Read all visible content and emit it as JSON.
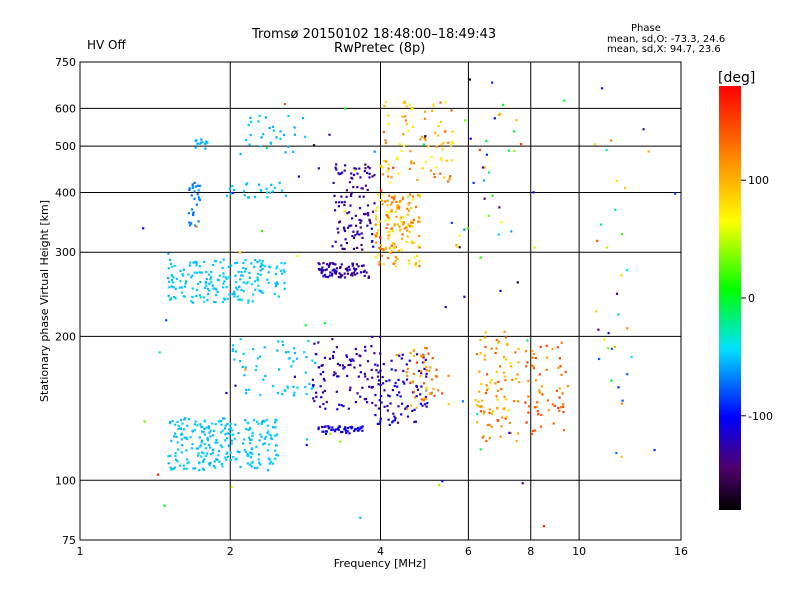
{
  "header": {
    "hv_status": "HV Off",
    "title_line1": "Tromsø 20150102 18:48:00–18:49:43",
    "title_line2": "RwPretec (8p)",
    "phase_heading": "Phase",
    "phase_o": "mean, sd,O: -73.3, 24.6",
    "phase_x": "mean, sd,X:  94.7, 23.6"
  },
  "colorbar": {
    "unit": "[deg]",
    "ticks": [
      "100",
      "0",
      "-100"
    ],
    "tick_values": [
      100,
      0,
      -100
    ],
    "range": [
      -180,
      180
    ]
  },
  "colors": {
    "hv_status": "#cc0000",
    "grid": "#000000"
  },
  "chart_data": {
    "type": "scatter",
    "xlabel": "Frequency [MHz]",
    "ylabel": "Stationary phase Virtual Height [km]",
    "xscale": "log",
    "yscale": "log",
    "xlim": [
      1,
      16
    ],
    "ylim": [
      75,
      750
    ],
    "grid": true,
    "x_ticks": [
      1,
      2,
      4,
      6,
      8,
      10,
      16
    ],
    "x_tick_labels": [
      "1",
      "2",
      "4",
      "6",
      "8",
      "10",
      "16"
    ],
    "y_ticks": [
      75,
      100,
      200,
      300,
      400,
      500,
      600,
      750
    ],
    "y_tick_labels": [
      "75",
      "100",
      "200",
      "300",
      "400",
      "500",
      "600",
      "750"
    ],
    "color_encodes": "phase [deg]",
    "clusters": [
      {
        "x": [
          1.5,
          2.5
        ],
        "y": [
          105,
          135
        ],
        "phase": [
          -55,
          -45
        ],
        "n": 260
      },
      {
        "x": [
          1.5,
          2.6
        ],
        "y": [
          235,
          290
        ],
        "phase": [
          -55,
          -45
        ],
        "n": 200
      },
      {
        "x": [
          1.65,
          1.75
        ],
        "y": [
          340,
          420
        ],
        "phase": [
          -75,
          -60
        ],
        "n": 30
      },
      {
        "x": [
          1.7,
          1.8
        ],
        "y": [
          490,
          520
        ],
        "phase": [
          -60,
          -45
        ],
        "n": 12
      },
      {
        "x": [
          1.95,
          2.6
        ],
        "y": [
          390,
          420
        ],
        "phase": [
          -55,
          -45
        ],
        "n": 25
      },
      {
        "x": [
          2.0,
          2.9
        ],
        "y": [
          480,
          580
        ],
        "phase": [
          -60,
          -45
        ],
        "n": 30
      },
      {
        "x": [
          2.0,
          3.0
        ],
        "y": [
          150,
          200
        ],
        "phase": [
          -55,
          -45
        ],
        "n": 60
      },
      {
        "x": [
          3.0,
          3.8
        ],
        "y": [
          265,
          285
        ],
        "phase": [
          -140,
          -115
        ],
        "n": 80
      },
      {
        "x": [
          3.0,
          3.7
        ],
        "y": [
          125,
          130
        ],
        "phase": [
          -120,
          -100
        ],
        "n": 50
      },
      {
        "x": [
          3.2,
          3.9
        ],
        "y": [
          300,
          460
        ],
        "phase": [
          -140,
          -115
        ],
        "n": 110
      },
      {
        "x": [
          2.9,
          4.0
        ],
        "y": [
          140,
          200
        ],
        "phase": [
          -140,
          -110
        ],
        "n": 100
      },
      {
        "x": [
          3.9,
          4.8
        ],
        "y": [
          280,
          400
        ],
        "phase": [
          60,
          140
        ],
        "n": 160
      },
      {
        "x": [
          4.0,
          5.6
        ],
        "y": [
          420,
          620
        ],
        "phase": [
          60,
          140
        ],
        "n": 90
      },
      {
        "x": [
          3.9,
          5.0
        ],
        "y": [
          130,
          185
        ],
        "phase": [
          -130,
          -100
        ],
        "n": 90
      },
      {
        "x": [
          4.5,
          5.5
        ],
        "y": [
          140,
          190
        ],
        "phase": [
          80,
          160
        ],
        "n": 50
      },
      {
        "x": [
          6.2,
          7.6
        ],
        "y": [
          120,
          205
        ],
        "phase": [
          80,
          150
        ],
        "n": 90
      },
      {
        "x": [
          7.8,
          9.5
        ],
        "y": [
          125,
          195
        ],
        "phase": [
          100,
          160
        ],
        "n": 60
      },
      {
        "x": [
          5.5,
          7.5
        ],
        "y": [
          280,
          620
        ],
        "phase": [
          -150,
          150
        ],
        "n": 30
      },
      {
        "x": [
          10.5,
          12.5
        ],
        "y": [
          140,
          600
        ],
        "phase": [
          -150,
          150
        ],
        "n": 25
      },
      {
        "x": [
          1.3,
          16
        ],
        "y": [
          80,
          700
        ],
        "phase": [
          -180,
          180
        ],
        "n": 80
      }
    ]
  }
}
